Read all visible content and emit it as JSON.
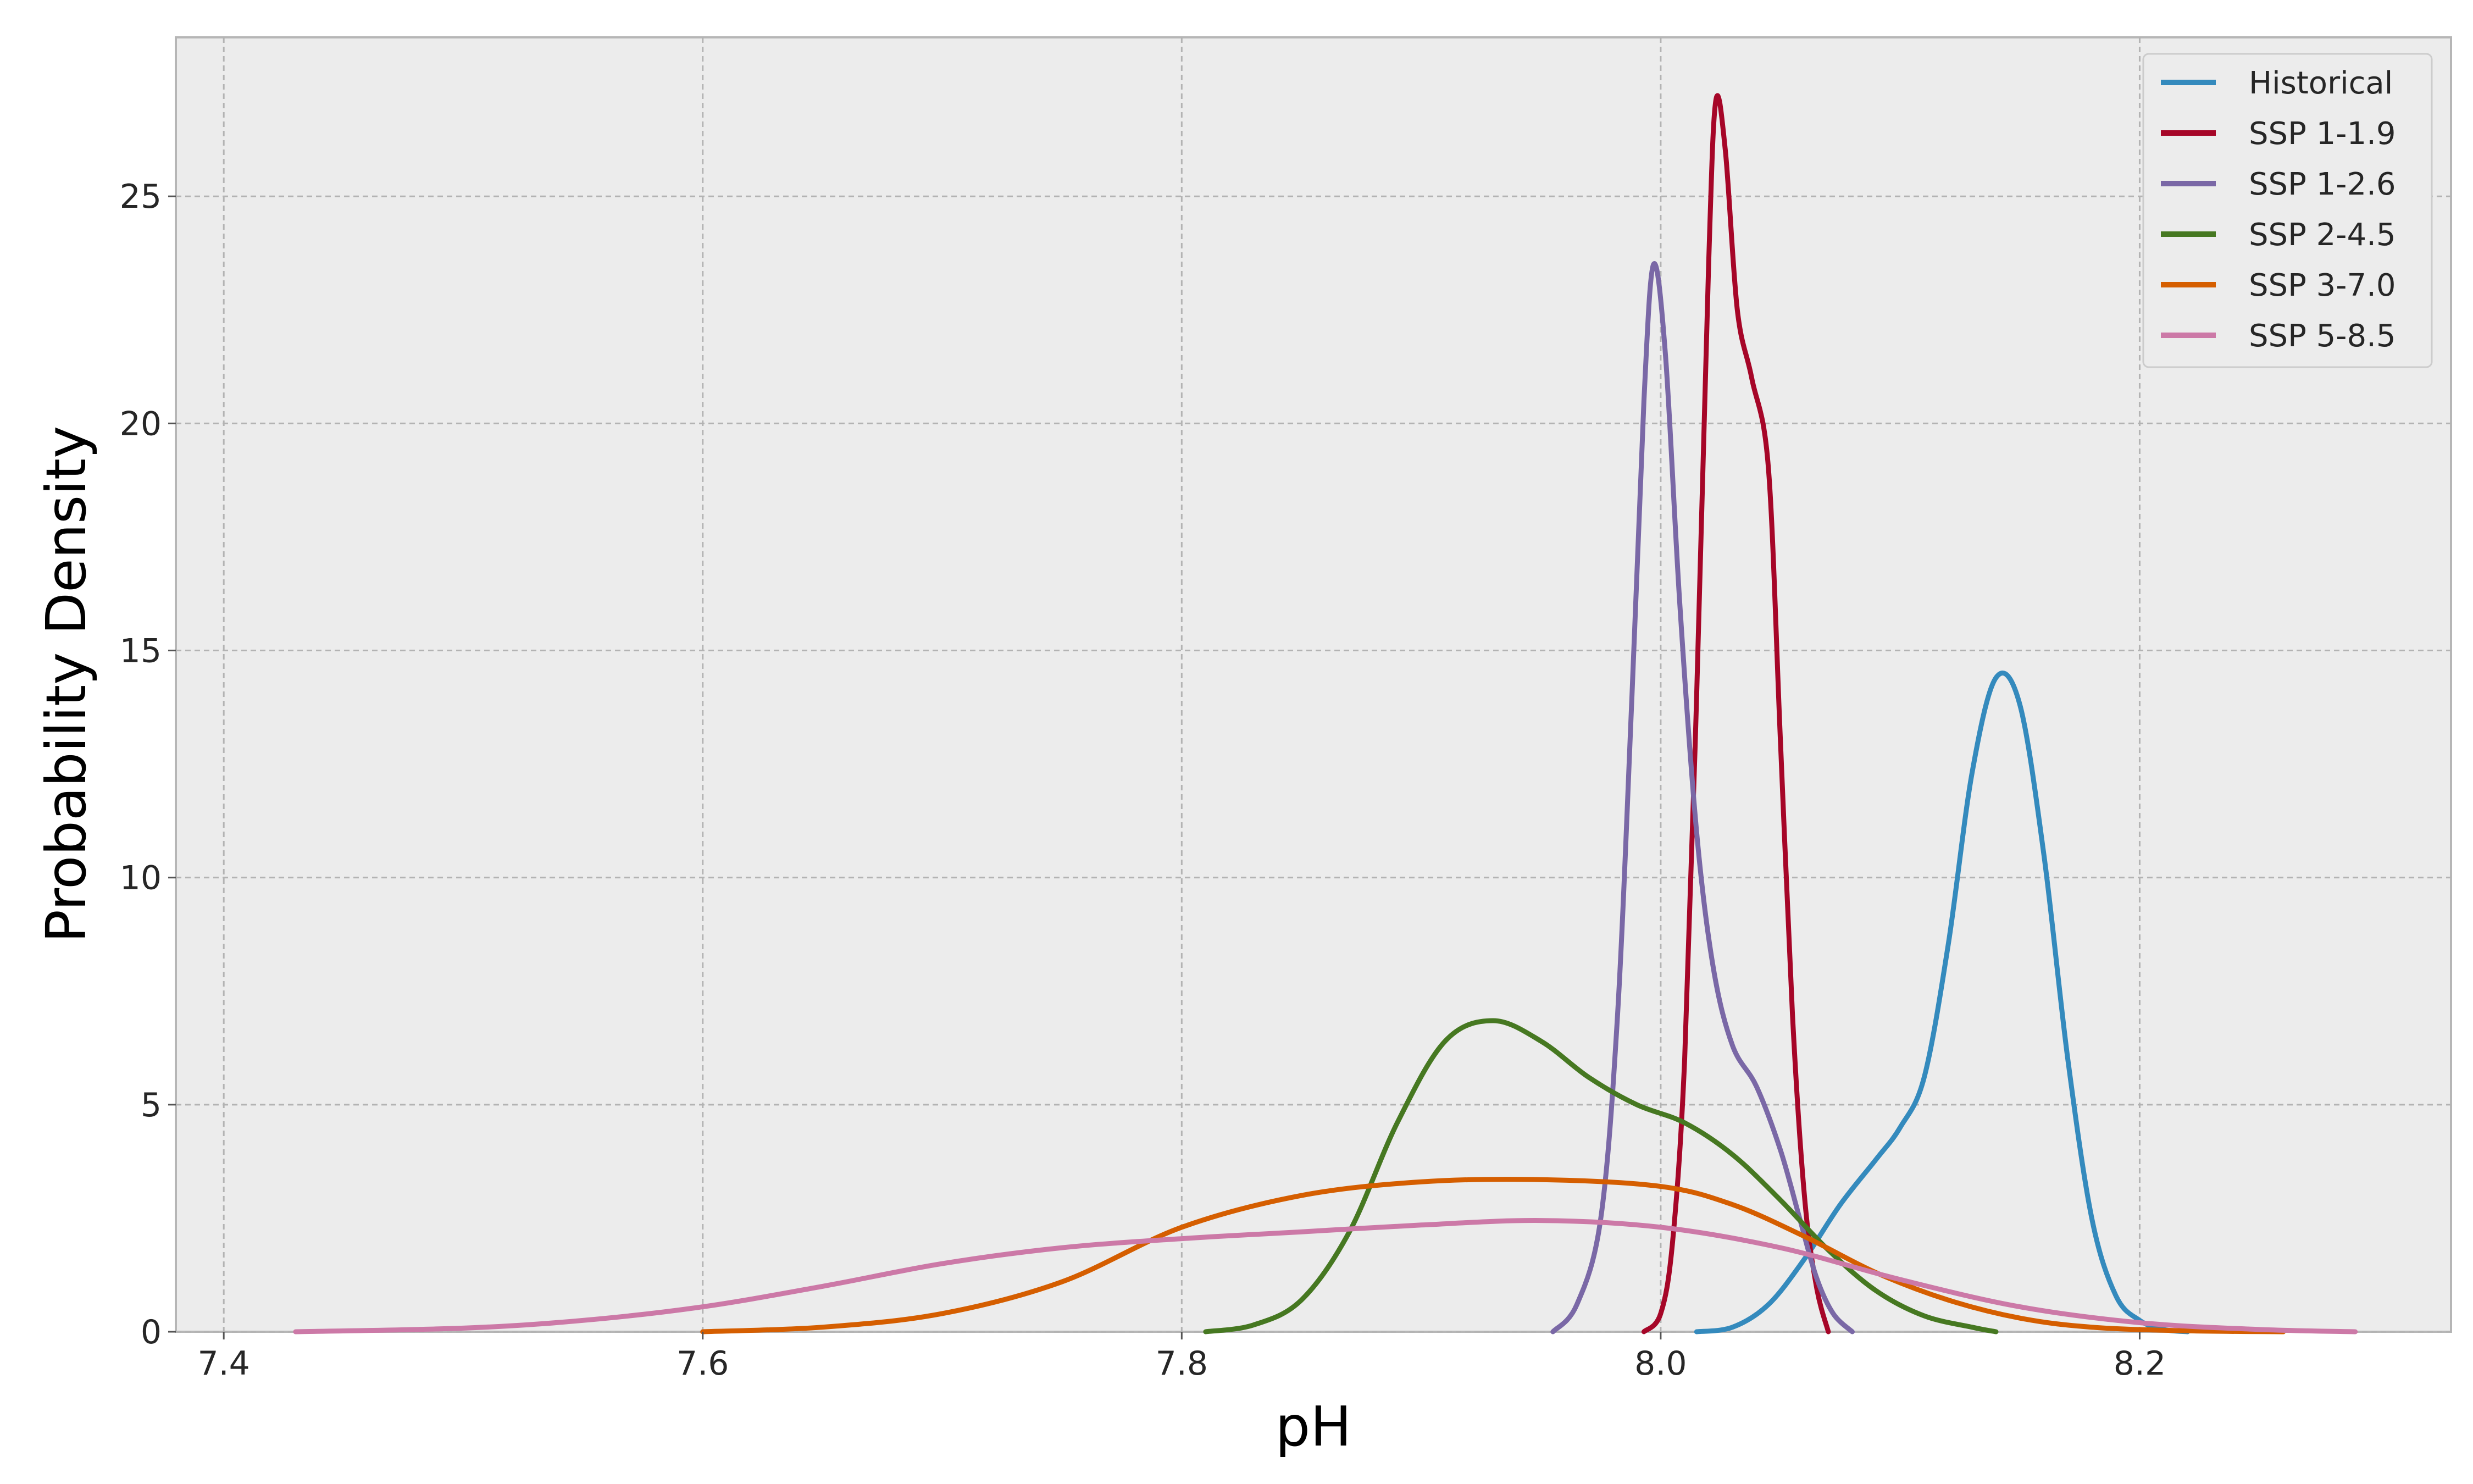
{
  "chart_data": {
    "type": "line",
    "xlabel": "pH",
    "ylabel": "Probability Density",
    "xlim": [
      7.38,
      8.33
    ],
    "ylim": [
      0,
      28.5
    ],
    "x_ticks": [
      "7.4",
      "7.6",
      "7.8",
      "8.0",
      "8.2"
    ],
    "y_ticks": [
      "0",
      "5",
      "10",
      "15",
      "20",
      "25"
    ],
    "grid": true,
    "legend_position": "top-right",
    "series": [
      {
        "name": "Historical",
        "color": "#348ABD",
        "points": [
          [
            8.015,
            0
          ],
          [
            8.03,
            0.1
          ],
          [
            8.045,
            0.6
          ],
          [
            8.06,
            1.6
          ],
          [
            8.075,
            2.8
          ],
          [
            8.09,
            3.8
          ],
          [
            8.1,
            4.5
          ],
          [
            8.11,
            5.6
          ],
          [
            8.12,
            8.5
          ],
          [
            8.13,
            12.3
          ],
          [
            8.14,
            14.4
          ],
          [
            8.15,
            13.8
          ],
          [
            8.16,
            10.5
          ],
          [
            8.17,
            6.0
          ],
          [
            8.18,
            2.5
          ],
          [
            8.19,
            0.8
          ],
          [
            8.2,
            0.25
          ],
          [
            8.21,
            0.05
          ],
          [
            8.22,
            0
          ]
        ]
      },
      {
        "name": "SSP 1-1.9",
        "color": "#A60628",
        "points": [
          [
            7.993,
            0
          ],
          [
            8.0,
            0.4
          ],
          [
            8.005,
            2.0
          ],
          [
            8.01,
            6.0
          ],
          [
            8.015,
            14.0
          ],
          [
            8.02,
            23.5
          ],
          [
            8.023,
            27.1
          ],
          [
            8.027,
            26.0
          ],
          [
            8.032,
            22.5
          ],
          [
            8.038,
            21.0
          ],
          [
            8.045,
            19.0
          ],
          [
            8.05,
            13.0
          ],
          [
            8.055,
            7.0
          ],
          [
            8.06,
            3.0
          ],
          [
            8.065,
            1.0
          ],
          [
            8.07,
            0
          ]
        ]
      },
      {
        "name": "SSP 1-2.6",
        "color": "#7A68A6",
        "points": [
          [
            7.955,
            0
          ],
          [
            7.965,
            0.6
          ],
          [
            7.975,
            2.5
          ],
          [
            7.982,
            7.0
          ],
          [
            7.988,
            14.0
          ],
          [
            7.993,
            20.5
          ],
          [
            7.997,
            23.5
          ],
          [
            8.002,
            21.5
          ],
          [
            8.008,
            16.0
          ],
          [
            8.015,
            11.0
          ],
          [
            8.022,
            8.0
          ],
          [
            8.03,
            6.3
          ],
          [
            8.04,
            5.4
          ],
          [
            8.05,
            4.0
          ],
          [
            8.058,
            2.5
          ],
          [
            8.065,
            1.2
          ],
          [
            8.072,
            0.4
          ],
          [
            8.08,
            0
          ]
        ]
      },
      {
        "name": "SSP 2-4.5",
        "color": "#467821",
        "points": [
          [
            7.81,
            0
          ],
          [
            7.83,
            0.15
          ],
          [
            7.85,
            0.7
          ],
          [
            7.87,
            2.2
          ],
          [
            7.89,
            4.6
          ],
          [
            7.91,
            6.4
          ],
          [
            7.93,
            6.85
          ],
          [
            7.95,
            6.4
          ],
          [
            7.97,
            5.6
          ],
          [
            7.99,
            5.0
          ],
          [
            8.01,
            4.6
          ],
          [
            8.03,
            3.9
          ],
          [
            8.05,
            2.9
          ],
          [
            8.07,
            1.8
          ],
          [
            8.09,
            0.9
          ],
          [
            8.11,
            0.35
          ],
          [
            8.13,
            0.1
          ],
          [
            8.14,
            0
          ]
        ]
      },
      {
        "name": "SSP 3-7.0",
        "color": "#D55E00",
        "points": [
          [
            7.6,
            0
          ],
          [
            7.65,
            0.1
          ],
          [
            7.7,
            0.4
          ],
          [
            7.75,
            1.1
          ],
          [
            7.8,
            2.3
          ],
          [
            7.85,
            3.0
          ],
          [
            7.9,
            3.3
          ],
          [
            7.95,
            3.35
          ],
          [
            8.0,
            3.2
          ],
          [
            8.03,
            2.8
          ],
          [
            8.06,
            2.1
          ],
          [
            8.09,
            1.3
          ],
          [
            8.12,
            0.7
          ],
          [
            8.15,
            0.3
          ],
          [
            8.18,
            0.1
          ],
          [
            8.22,
            0.02
          ],
          [
            8.26,
            0
          ]
        ]
      },
      {
        "name": "SSP 5-8.5",
        "color": "#CC79A7",
        "points": [
          [
            7.43,
            0
          ],
          [
            7.5,
            0.08
          ],
          [
            7.55,
            0.25
          ],
          [
            7.6,
            0.55
          ],
          [
            7.65,
            1.0
          ],
          [
            7.7,
            1.5
          ],
          [
            7.75,
            1.85
          ],
          [
            7.8,
            2.05
          ],
          [
            7.85,
            2.2
          ],
          [
            7.9,
            2.35
          ],
          [
            7.95,
            2.45
          ],
          [
            8.0,
            2.3
          ],
          [
            8.05,
            1.85
          ],
          [
            8.1,
            1.15
          ],
          [
            8.15,
            0.55
          ],
          [
            8.2,
            0.2
          ],
          [
            8.25,
            0.05
          ],
          [
            8.29,
            0
          ]
        ]
      }
    ]
  }
}
